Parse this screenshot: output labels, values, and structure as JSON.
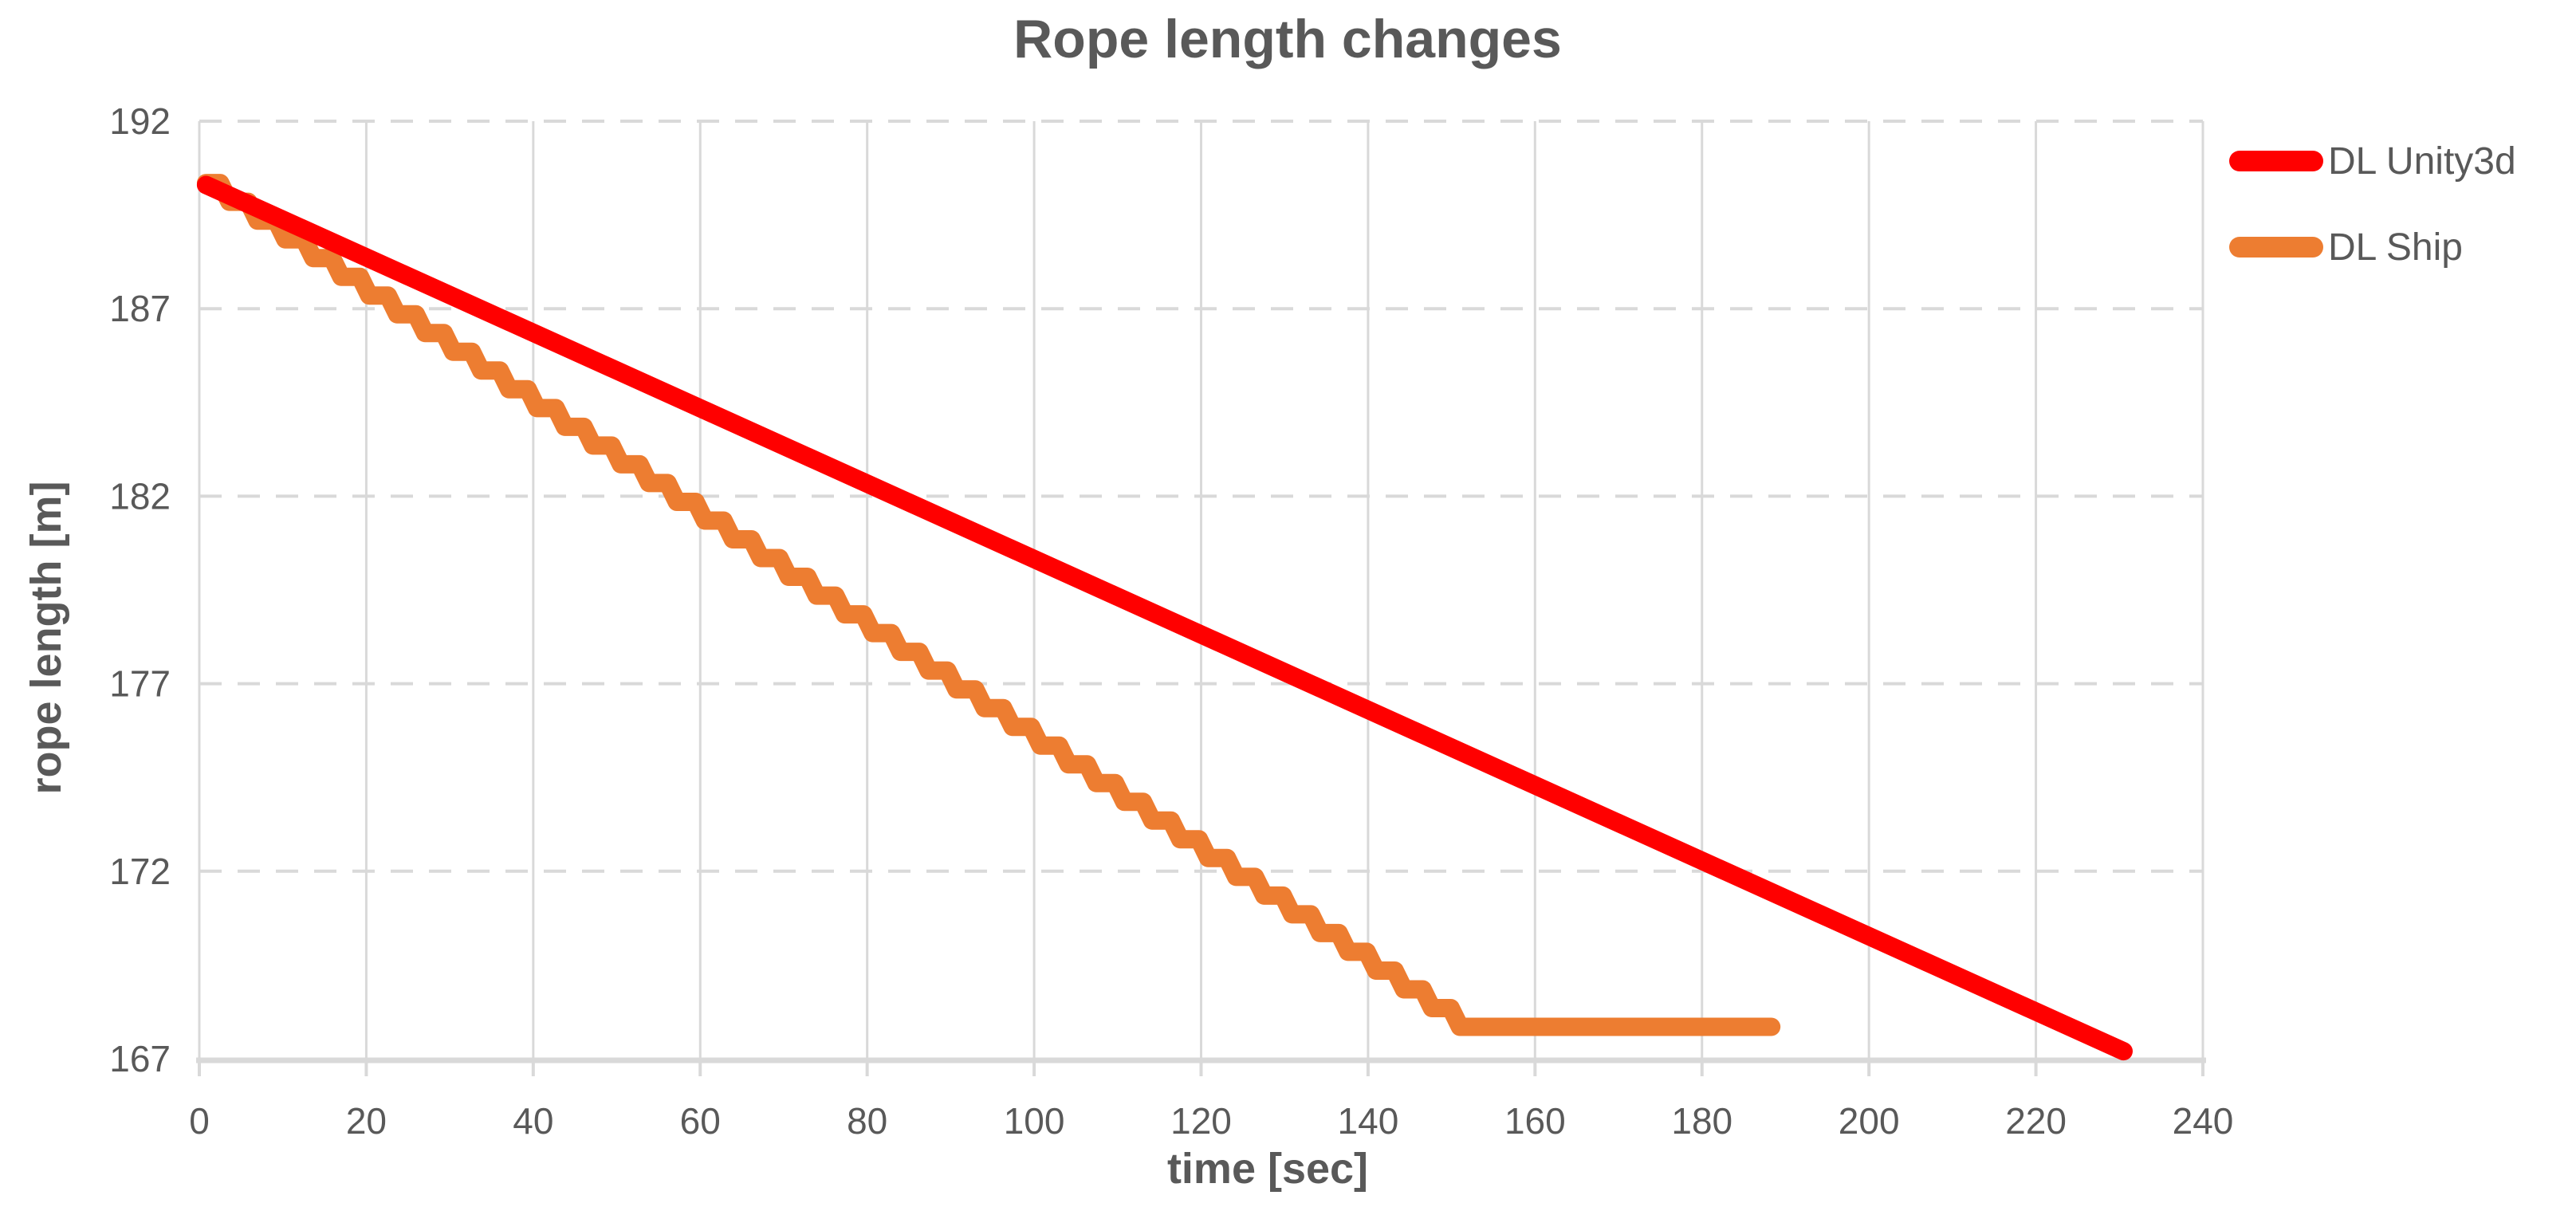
{
  "chart_data": {
    "type": "line",
    "title": "Rope length changes",
    "xlabel": "time [sec]",
    "ylabel": "rope length [m]",
    "xlim": [
      0,
      240
    ],
    "ylim": [
      167,
      192
    ],
    "x_ticks": [
      0,
      20,
      40,
      60,
      80,
      100,
      120,
      140,
      160,
      180,
      200,
      220,
      240
    ],
    "y_ticks": [
      167,
      172,
      177,
      182,
      187,
      192
    ],
    "grid": {
      "vertical_style": "solid",
      "horizontal_style": "dashed",
      "gridline_color": "#D9D9D9",
      "axis_line_color": "#D9D9D9"
    },
    "legend_position": "right-top",
    "text_color": "#595959",
    "series": [
      {
        "name": "DL Unity3d",
        "color": "#FF0000",
        "shape": "straight-line",
        "points": [
          [
            0.8,
            190.3
          ],
          [
            230.5,
            167.2
          ]
        ]
      },
      {
        "name": "DL Ship",
        "color": "#ED7D31",
        "shape": "staircase",
        "points": [
          [
            0.8,
            190.35
          ],
          [
            2.5,
            190.35
          ],
          [
            3.6,
            189.85
          ],
          [
            5.85,
            189.85
          ],
          [
            6.95,
            189.35
          ],
          [
            9.2,
            189.35
          ],
          [
            10.3,
            188.85
          ],
          [
            12.55,
            188.85
          ],
          [
            13.65,
            188.35
          ],
          [
            15.9,
            188.35
          ],
          [
            17.0,
            187.85
          ],
          [
            19.25,
            187.85
          ],
          [
            20.35,
            187.35
          ],
          [
            22.6,
            187.35
          ],
          [
            23.7,
            186.85
          ],
          [
            25.95,
            186.85
          ],
          [
            27.05,
            186.35
          ],
          [
            29.3,
            186.35
          ],
          [
            30.4,
            185.85
          ],
          [
            32.65,
            185.85
          ],
          [
            33.75,
            185.35
          ],
          [
            36.0,
            185.35
          ],
          [
            37.1,
            184.85
          ],
          [
            39.35,
            184.85
          ],
          [
            40.45,
            184.35
          ],
          [
            42.7,
            184.35
          ],
          [
            43.8,
            183.85
          ],
          [
            46.05,
            183.85
          ],
          [
            47.15,
            183.35
          ],
          [
            49.4,
            183.35
          ],
          [
            50.5,
            182.85
          ],
          [
            52.75,
            182.85
          ],
          [
            53.85,
            182.35
          ],
          [
            56.1,
            182.35
          ],
          [
            57.2,
            181.85
          ],
          [
            59.45,
            181.85
          ],
          [
            60.55,
            181.35
          ],
          [
            62.8,
            181.35
          ],
          [
            63.9,
            180.85
          ],
          [
            66.15,
            180.85
          ],
          [
            67.25,
            180.35
          ],
          [
            69.5,
            180.35
          ],
          [
            70.6,
            179.85
          ],
          [
            72.85,
            179.85
          ],
          [
            73.95,
            179.35
          ],
          [
            76.2,
            179.35
          ],
          [
            77.3,
            178.85
          ],
          [
            79.55,
            178.85
          ],
          [
            80.65,
            178.35
          ],
          [
            82.9,
            178.35
          ],
          [
            84.0,
            177.85
          ],
          [
            86.25,
            177.85
          ],
          [
            87.35,
            177.35
          ],
          [
            89.6,
            177.35
          ],
          [
            90.7,
            176.85
          ],
          [
            92.95,
            176.85
          ],
          [
            94.05,
            176.35
          ],
          [
            96.3,
            176.35
          ],
          [
            97.4,
            175.85
          ],
          [
            99.65,
            175.85
          ],
          [
            100.75,
            175.35
          ],
          [
            103.0,
            175.35
          ],
          [
            104.1,
            174.85
          ],
          [
            106.35,
            174.85
          ],
          [
            107.45,
            174.35
          ],
          [
            109.7,
            174.35
          ],
          [
            110.8,
            173.85
          ],
          [
            113.05,
            173.85
          ],
          [
            114.15,
            173.35
          ],
          [
            116.4,
            173.35
          ],
          [
            117.5,
            172.85
          ],
          [
            119.75,
            172.85
          ],
          [
            120.85,
            172.35
          ],
          [
            123.1,
            172.35
          ],
          [
            124.2,
            171.85
          ],
          [
            126.45,
            171.85
          ],
          [
            127.55,
            171.35
          ],
          [
            129.8,
            171.35
          ],
          [
            130.9,
            170.85
          ],
          [
            133.15,
            170.85
          ],
          [
            134.25,
            170.35
          ],
          [
            136.5,
            170.35
          ],
          [
            137.6,
            169.85
          ],
          [
            139.85,
            169.85
          ],
          [
            140.95,
            169.35
          ],
          [
            143.2,
            169.35
          ],
          [
            144.3,
            168.85
          ],
          [
            146.55,
            168.85
          ],
          [
            147.65,
            168.35
          ],
          [
            149.9,
            168.35
          ],
          [
            151.0,
            167.85
          ],
          [
            188.3,
            167.85
          ]
        ]
      }
    ]
  },
  "legend": {
    "items": [
      {
        "label": "DL Unity3d"
      },
      {
        "label": "DL Ship"
      }
    ]
  }
}
